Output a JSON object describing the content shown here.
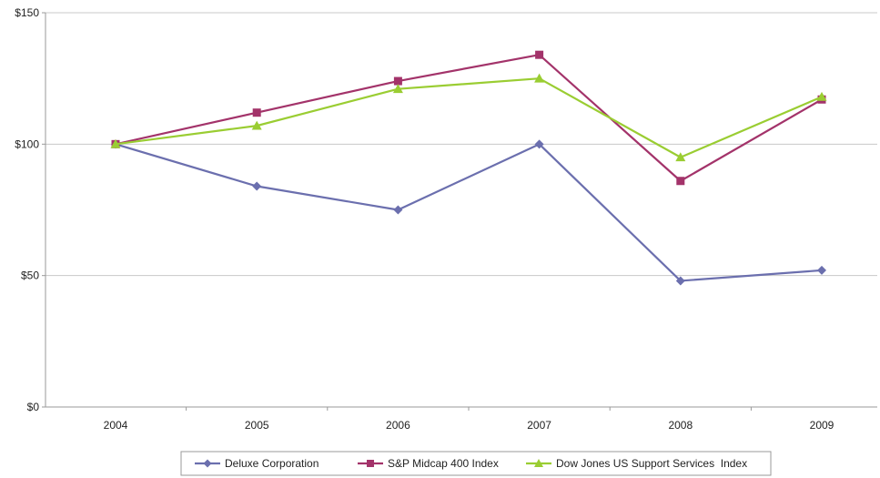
{
  "chart_data": {
    "type": "line",
    "categories": [
      "2004",
      "2005",
      "2006",
      "2007",
      "2008",
      "2009"
    ],
    "ylim": [
      0,
      150
    ],
    "y_ticks": [
      0,
      50,
      100,
      150
    ],
    "y_tick_labels": [
      "$0",
      "$50",
      "$100",
      "$150"
    ],
    "grid": "horizontal",
    "legend_position": "bottom",
    "series": [
      {
        "name": "Deluxe Corporation",
        "marker": "diamond",
        "color": "#6b6fae",
        "values": [
          100,
          84,
          75,
          100,
          48,
          52
        ]
      },
      {
        "name": "S&P Midcap 400 Index",
        "marker": "square",
        "color": "#a3336a",
        "values": [
          100,
          112,
          124,
          134,
          86,
          117
        ]
      },
      {
        "name": "Dow Jones US Support Services  Index",
        "marker": "triangle",
        "color": "#9acd32",
        "values": [
          100,
          107,
          121,
          125,
          95,
          118
        ]
      }
    ]
  }
}
